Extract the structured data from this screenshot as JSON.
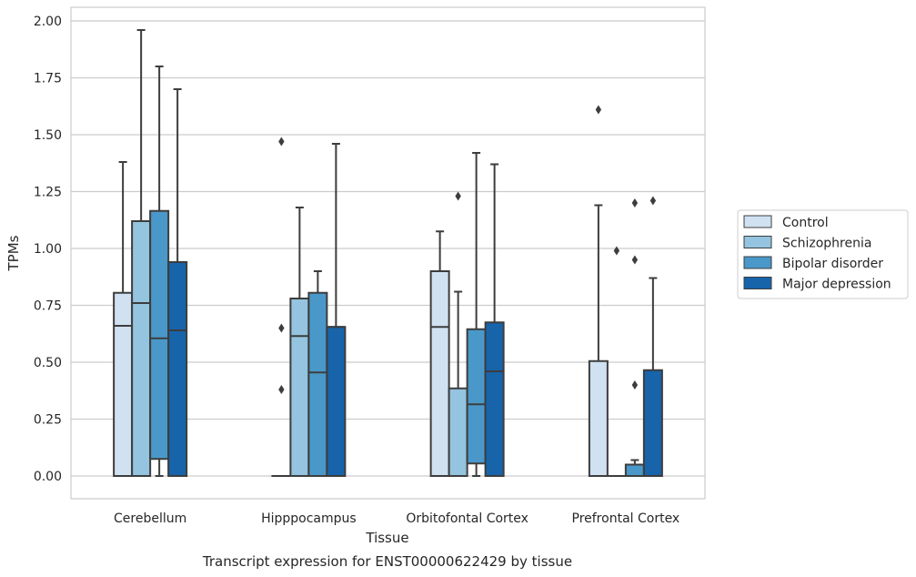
{
  "chart_data": {
    "type": "box",
    "caption": "Transcript expression for ENST00000622429 by tissue",
    "xlabel": "Tissue",
    "ylabel": "TPMs",
    "ylim": [
      -0.1,
      2.06
    ],
    "yticks": [
      "0.00",
      "0.25",
      "0.50",
      "0.75",
      "1.00",
      "1.25",
      "1.50",
      "1.75",
      "2.00"
    ],
    "grid": true,
    "legend_position": "right",
    "categories": [
      "Cerebellum",
      "Hipppocampus",
      "Orbitofontal Cortex",
      "Prefrontal Cortex"
    ],
    "series": [
      {
        "name": "Control",
        "color": "#d0e1f2",
        "boxes": [
          {
            "q1": 0.0,
            "median": 0.66,
            "q3": 0.805,
            "whislo": 0.0,
            "whishi": 1.38,
            "fliers": []
          },
          {
            "q1": 0.0,
            "median": 0.0,
            "q3": 0.0,
            "whislo": 0.0,
            "whishi": 0.0,
            "fliers": [
              1.47,
              0.65,
              0.38
            ]
          },
          {
            "q1": 0.0,
            "median": 0.655,
            "q3": 0.9,
            "whislo": 0.0,
            "whishi": 1.075,
            "fliers": []
          },
          {
            "q1": 0.0,
            "median": 0.0,
            "q3": 0.505,
            "whislo": 0.0,
            "whishi": 1.19,
            "fliers": [
              1.61
            ]
          }
        ]
      },
      {
        "name": "Schizophrenia",
        "color": "#94c4df",
        "boxes": [
          {
            "q1": 0.0,
            "median": 0.76,
            "q3": 1.12,
            "whislo": 0.0,
            "whishi": 1.96,
            "fliers": []
          },
          {
            "q1": 0.0,
            "median": 0.615,
            "q3": 0.78,
            "whislo": 0.0,
            "whishi": 1.18,
            "fliers": []
          },
          {
            "q1": 0.0,
            "median": 0.0,
            "q3": 0.385,
            "whislo": 0.0,
            "whishi": 0.81,
            "fliers": [
              1.23
            ]
          },
          {
            "q1": 0.0,
            "median": 0.0,
            "q3": 0.0,
            "whislo": 0.0,
            "whishi": 0.0,
            "fliers": [
              0.99
            ]
          }
        ]
      },
      {
        "name": "Bipolar disorder",
        "color": "#4a98c9",
        "boxes": [
          {
            "q1": 0.075,
            "median": 0.605,
            "q3": 1.165,
            "whislo": 0.0,
            "whishi": 1.8,
            "fliers": []
          },
          {
            "q1": 0.0,
            "median": 0.455,
            "q3": 0.805,
            "whislo": 0.0,
            "whishi": 0.9,
            "fliers": []
          },
          {
            "q1": 0.055,
            "median": 0.315,
            "q3": 0.645,
            "whislo": 0.0,
            "whishi": 1.42,
            "fliers": []
          },
          {
            "q1": 0.0,
            "median": 0.05,
            "q3": 0.05,
            "whislo": 0.0,
            "whishi": 0.07,
            "fliers": [
              1.2,
              0.95,
              0.4
            ]
          }
        ]
      },
      {
        "name": "Major depression",
        "color": "#1764ab",
        "boxes": [
          {
            "q1": 0.0,
            "median": 0.64,
            "q3": 0.94,
            "whislo": 0.0,
            "whishi": 1.7,
            "fliers": []
          },
          {
            "q1": 0.0,
            "median": 0.655,
            "q3": 0.655,
            "whislo": 0.0,
            "whishi": 1.46,
            "fliers": []
          },
          {
            "q1": 0.0,
            "median": 0.46,
            "q3": 0.675,
            "whislo": 0.0,
            "whishi": 1.37,
            "fliers": []
          },
          {
            "q1": 0.0,
            "median": 0.0,
            "q3": 0.465,
            "whislo": 0.0,
            "whishi": 0.87,
            "fliers": [
              1.21
            ]
          }
        ]
      }
    ]
  }
}
